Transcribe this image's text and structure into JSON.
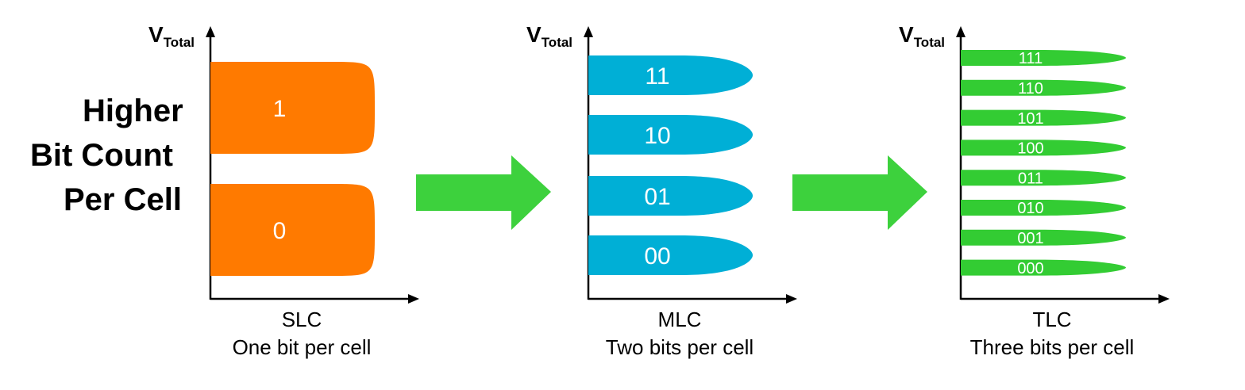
{
  "side_label": {
    "line1": "Higher",
    "line2": "Bit Count",
    "line3": "Per Cell"
  },
  "axis_label": {
    "main": "V",
    "sub": "Total"
  },
  "colors": {
    "slc": "#ff7a00",
    "mlc": "#00afd6",
    "tlc": "#33cc33",
    "arrow": "#3dd13d",
    "axis": "#000000",
    "cell_text": "#ffffff"
  },
  "panels": [
    {
      "name": "slc",
      "type_label": "SLC",
      "description": "One bit per cell",
      "states": [
        "1",
        "0"
      ]
    },
    {
      "name": "mlc",
      "type_label": "MLC",
      "description": "Two bits per cell",
      "states": [
        "11",
        "10",
        "01",
        "00"
      ]
    },
    {
      "name": "tlc",
      "type_label": "TLC",
      "description": "Three bits per cell",
      "states": [
        "111",
        "110",
        "101",
        "100",
        "011",
        "010",
        "001",
        "000"
      ]
    }
  ]
}
